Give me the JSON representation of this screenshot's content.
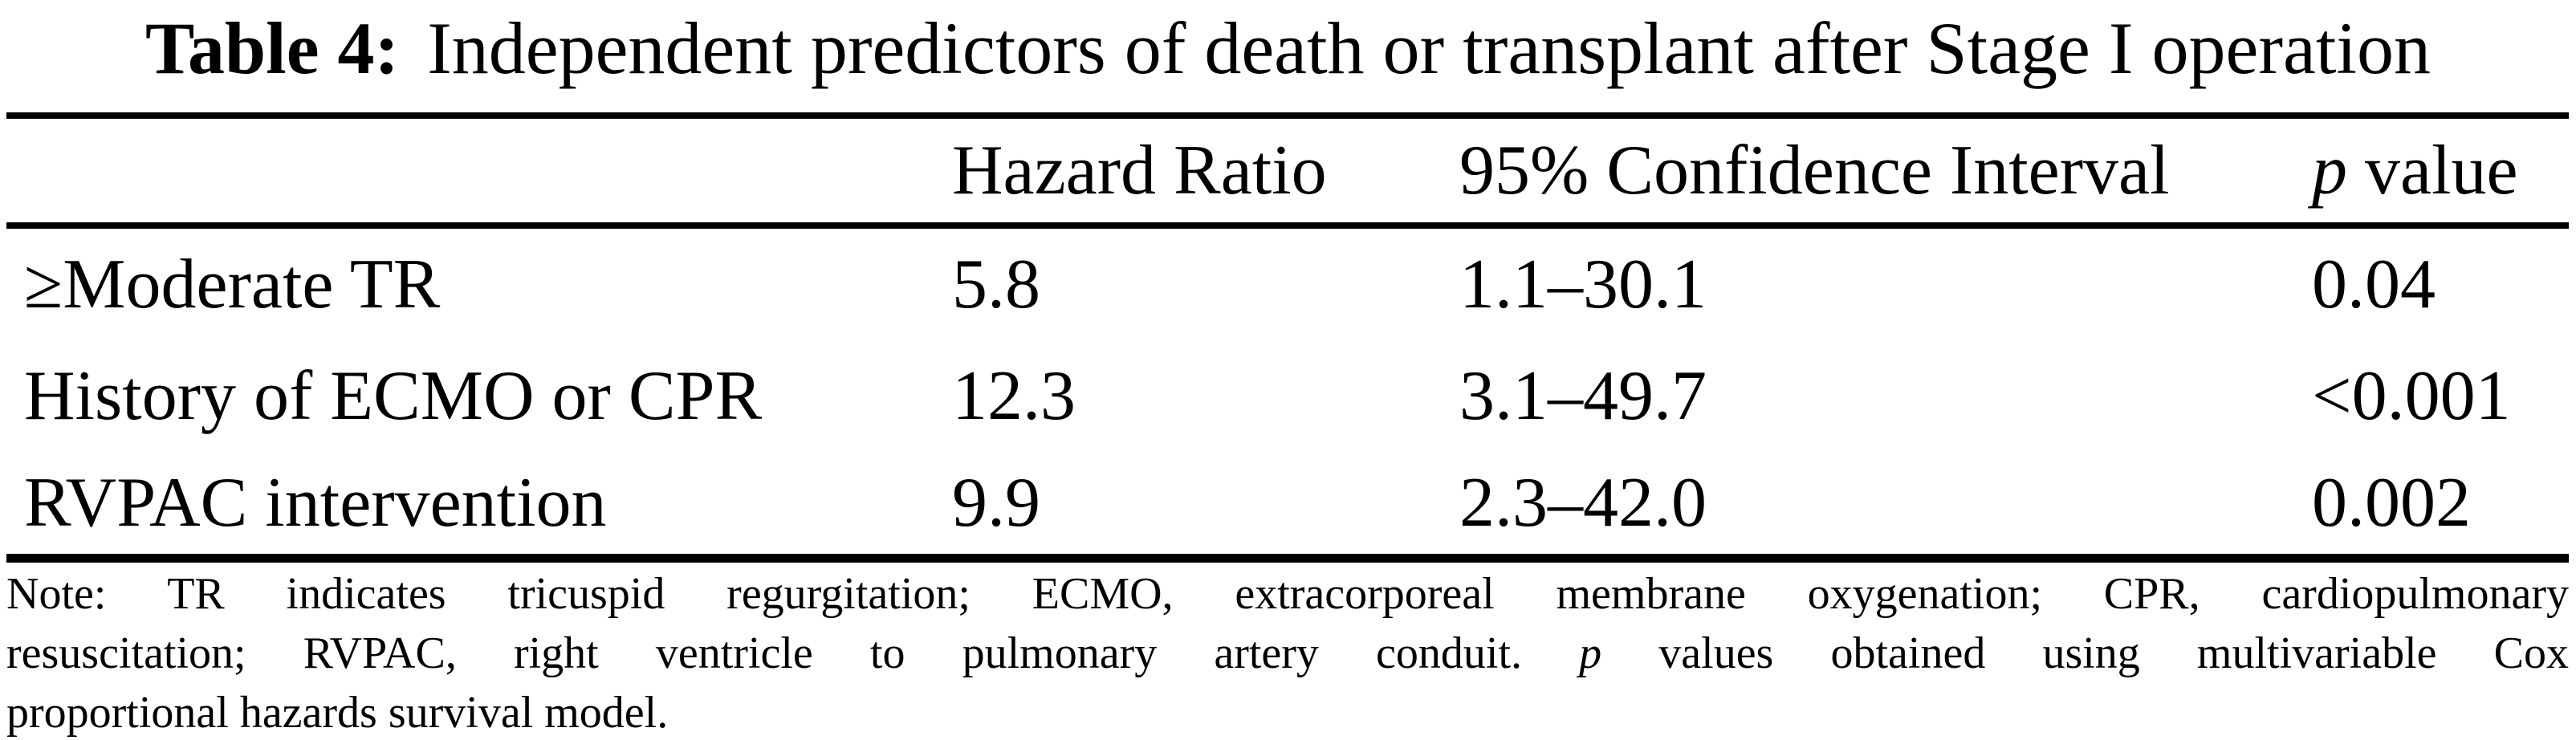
{
  "table": {
    "title_label": "Table 4:",
    "title_text": "Independent predictors of death or transplant after Stage I operation",
    "columns": {
      "predictor": "",
      "hazard_ratio": "Hazard Ratio",
      "confidence_interval": "95% Confidence Interval",
      "p_italic": "p",
      "p_rest": " value"
    },
    "rows": [
      {
        "predictor": "≥Moderate TR",
        "hazard_ratio": "5.8",
        "confidence_interval": "1.1–30.1",
        "p_value": "0.04"
      },
      {
        "predictor": "History of ECMO or CPR",
        "hazard_ratio": "12.3",
        "confidence_interval": "3.1–49.7",
        "p_value": "<0.001"
      },
      {
        "predictor": "RVPAC intervention",
        "hazard_ratio": "9.9",
        "confidence_interval": "2.3–42.0",
        "p_value": "0.002"
      }
    ]
  },
  "note": {
    "line1": "Note: TR indicates tricuspid regurgitation; ECMO, extracorporeal membrane oxygenation; CPR, cardiopulmonary",
    "line2_before_p": "resuscitation; RVPAC, right ventricle to pulmonary artery conduit. ",
    "line2_p": "p",
    "line2_after_p": " values obtained using multivariable Cox",
    "line3": "proportional hazards survival model."
  },
  "chart_data": {
    "type": "table",
    "title": "Table 4: Independent predictors of death or transplant after Stage I operation",
    "columns": [
      "",
      "Hazard Ratio",
      "95% Confidence Interval",
      "p value"
    ],
    "rows": [
      [
        "≥Moderate TR",
        "5.8",
        "1.1–30.1",
        "0.04"
      ],
      [
        "History of ECMO or CPR",
        "12.3",
        "3.1–49.7",
        "<0.001"
      ],
      [
        "RVPAC intervention",
        "9.9",
        "2.3–42.0",
        "0.002"
      ]
    ],
    "note": "Note: TR indicates tricuspid regurgitation; ECMO, extracorporeal membrane oxygenation; CPR, cardiopulmonary resuscitation; RVPAC, right ventricle to pulmonary artery conduit. p values obtained using multivariable Cox proportional hazards survival model."
  }
}
